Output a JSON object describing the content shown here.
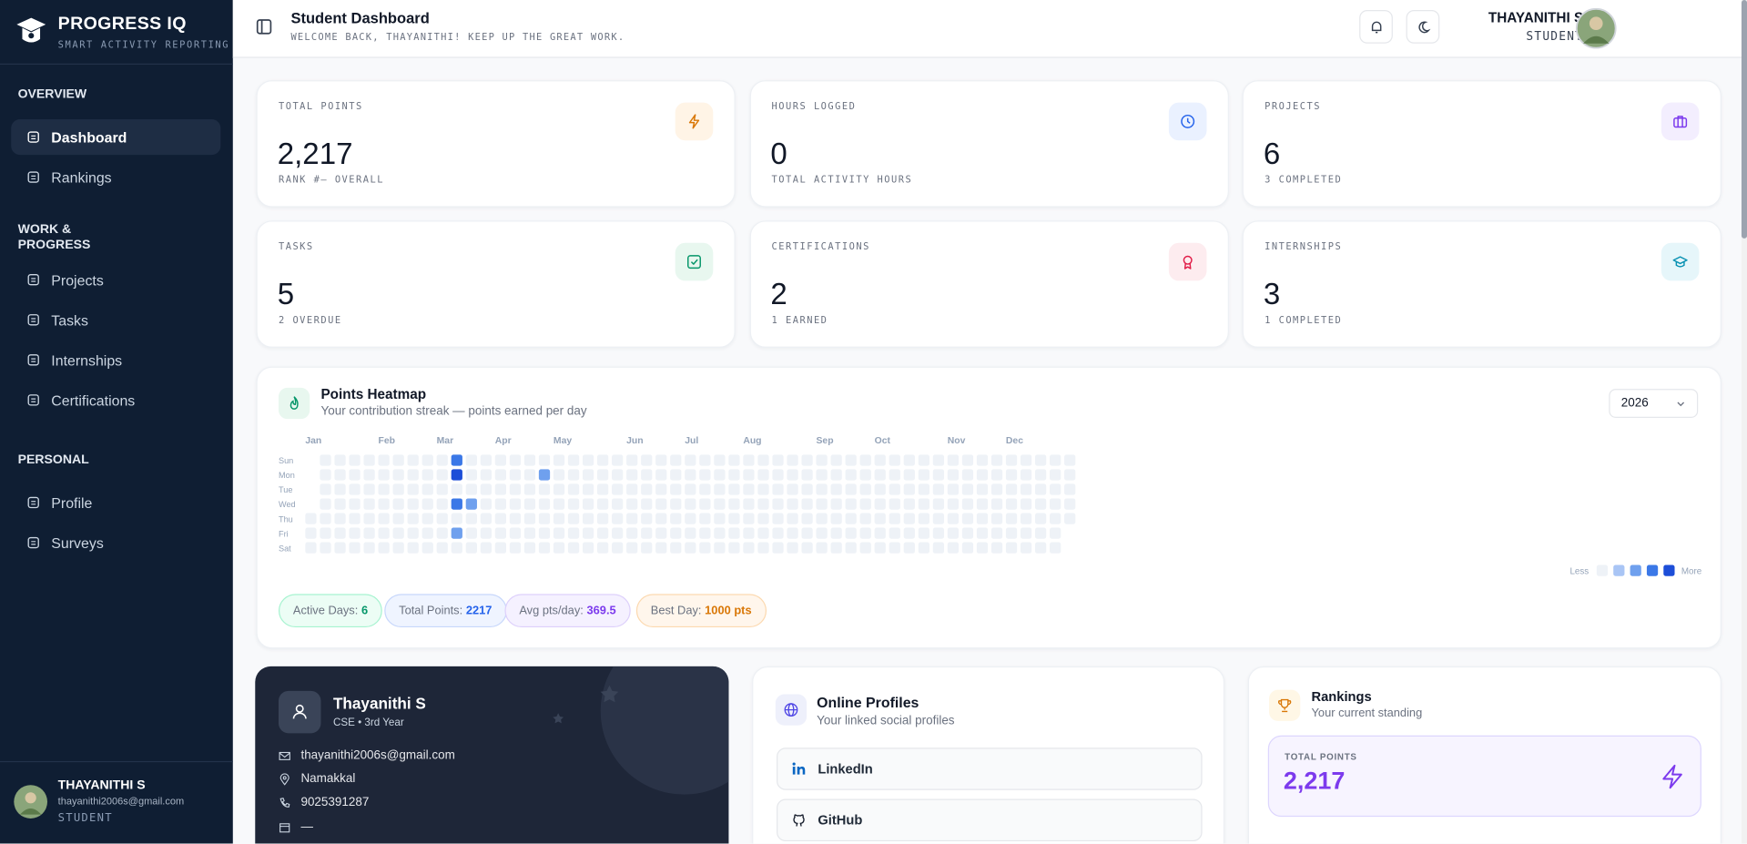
{
  "sidebar": {
    "brand": "PROGRESS IQ",
    "tagline": "SMART ACTIVITY REPORTING",
    "sections": [
      {
        "title": "OVERVIEW",
        "items": [
          "Dashboard",
          "Rankings"
        ]
      },
      {
        "title": "WORK & PROGRESS",
        "items": [
          "Projects",
          "Tasks",
          "Internships",
          "Certifications"
        ]
      },
      {
        "title": "PERSONAL",
        "items": [
          "Profile",
          "Surveys"
        ]
      }
    ],
    "user": {
      "name": "THAYANITHI S",
      "email": "thayanithi2006s@gmail.com",
      "role": "STUDENT"
    }
  },
  "header": {
    "title": "Student Dashboard",
    "subtitle": "WELCOME BACK, THAYANITHI! KEEP UP THE GREAT WORK.",
    "user_name": "THAYANITHI S",
    "user_role": "STUDENT"
  },
  "stats": [
    {
      "label": "TOTAL POINTS",
      "value": "2,217",
      "note": "RANK #— OVERALL"
    },
    {
      "label": "HOURS LOGGED",
      "value": "0",
      "note": "TOTAL ACTIVITY HOURS"
    },
    {
      "label": "PROJECTS",
      "value": "6",
      "note": "3 COMPLETED"
    },
    {
      "label": "TASKS",
      "value": "5",
      "note": "2 OVERDUE"
    },
    {
      "label": "CERTIFICATIONS",
      "value": "2",
      "note": "1 EARNED"
    },
    {
      "label": "INTERNSHIPS",
      "value": "3",
      "note": "1 COMPLETED"
    }
  ],
  "heatmap": {
    "title": "Points Heatmap",
    "subtitle": "Your contribution streak — points earned per day",
    "year": 2026,
    "months": [
      "Jan",
      "Feb",
      "Mar",
      "Apr",
      "May",
      "Jun",
      "Jul",
      "Aug",
      "Sep",
      "Oct",
      "Nov",
      "Dec"
    ],
    "days": [
      "Sun",
      "Mon",
      "Tue",
      "Wed",
      "Thu",
      "Fri",
      "Sat"
    ],
    "active": [
      {
        "week": 10,
        "day": 0,
        "level": 3
      },
      {
        "week": 10,
        "day": 1,
        "level": 4
      },
      {
        "week": 10,
        "day": 3,
        "level": 3
      },
      {
        "week": 11,
        "day": 3,
        "level": 2
      },
      {
        "week": 10,
        "day": 5,
        "level": 2
      },
      {
        "week": 16,
        "day": 1,
        "level": 2
      }
    ],
    "legend_less": "Less",
    "legend_more": "More",
    "summary": [
      {
        "label": "Active Days:",
        "value": "6"
      },
      {
        "label": "Total Points:",
        "value": "2217"
      },
      {
        "label": "Avg pts/day:",
        "value": "369.5"
      },
      {
        "label": "Best Day:",
        "value": "1000 pts"
      }
    ]
  },
  "profile_card": {
    "name": "Thayanithi S",
    "program": "CSE • 3rd Year",
    "email": "thayanithi2006s@gmail.com",
    "location": "Namakkal",
    "phone": "9025391287",
    "date": "—"
  },
  "online_profiles": {
    "title": "Online Profiles",
    "subtitle": "Your linked social profiles",
    "links": [
      "LinkedIn",
      "GitHub"
    ]
  },
  "rankings": {
    "title": "Rankings",
    "subtitle": "Your current standing",
    "label": "TOTAL POINTS",
    "value": "2,217"
  }
}
